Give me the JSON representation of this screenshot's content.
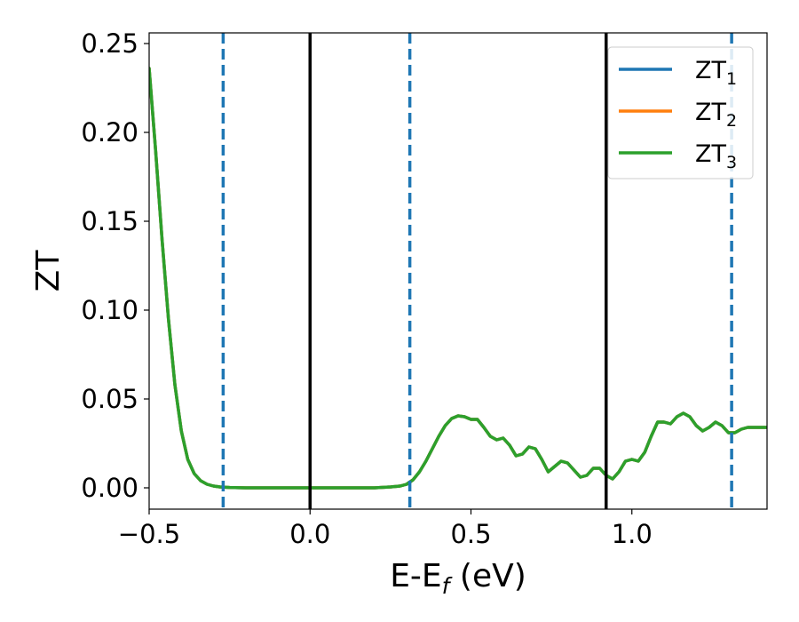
{
  "chart_data": {
    "type": "line",
    "xlabel": "E-E",
    "xlabel_sub": "f",
    "xlabel_unit": " (eV)",
    "ylabel": "ZT",
    "xlim": [
      -0.5,
      1.42
    ],
    "ylim": [
      -0.012,
      0.256
    ],
    "xticks": [
      -0.5,
      0.0,
      0.5,
      1.0
    ],
    "xtick_labels": [
      "−0.5",
      "0.0",
      "0.5",
      "1.0"
    ],
    "yticks": [
      0.0,
      0.05,
      0.1,
      0.15,
      0.2,
      0.25
    ],
    "ytick_labels": [
      "0.00",
      "0.05",
      "0.10",
      "0.15",
      "0.20",
      "0.25"
    ],
    "grid": false,
    "legend_position": "top-right",
    "series": [
      {
        "name": "ZT",
        "sub": "1",
        "color": "#1f77b4"
      },
      {
        "name": "ZT",
        "sub": "2",
        "color": "#ff7f0e"
      },
      {
        "name": "ZT",
        "sub": "3",
        "color": "#2ca02c"
      }
    ],
    "x": [
      -0.5,
      -0.48,
      -0.46,
      -0.44,
      -0.42,
      -0.4,
      -0.38,
      -0.36,
      -0.34,
      -0.32,
      -0.3,
      -0.28,
      -0.25,
      -0.2,
      -0.1,
      0.0,
      0.1,
      0.2,
      0.25,
      0.28,
      0.3,
      0.32,
      0.34,
      0.36,
      0.38,
      0.4,
      0.42,
      0.44,
      0.46,
      0.48,
      0.5,
      0.52,
      0.54,
      0.56,
      0.58,
      0.6,
      0.62,
      0.64,
      0.66,
      0.68,
      0.7,
      0.72,
      0.74,
      0.76,
      0.78,
      0.8,
      0.82,
      0.84,
      0.86,
      0.88,
      0.9,
      0.92,
      0.94,
      0.96,
      0.98,
      1.0,
      1.02,
      1.04,
      1.06,
      1.08,
      1.1,
      1.12,
      1.14,
      1.16,
      1.18,
      1.2,
      1.22,
      1.24,
      1.26,
      1.28,
      1.3,
      1.32,
      1.34,
      1.36,
      1.38,
      1.4,
      1.42
    ],
    "values": [
      0.236,
      0.19,
      0.14,
      0.095,
      0.058,
      0.032,
      0.016,
      0.008,
      0.004,
      0.002,
      0.001,
      0.0005,
      0.0002,
      0.0,
      0.0,
      0.0,
      0.0,
      0.0,
      0.0005,
      0.001,
      0.002,
      0.0045,
      0.009,
      0.015,
      0.022,
      0.029,
      0.035,
      0.039,
      0.0405,
      0.04,
      0.0385,
      0.0385,
      0.034,
      0.029,
      0.027,
      0.028,
      0.024,
      0.018,
      0.019,
      0.023,
      0.022,
      0.016,
      0.009,
      0.012,
      0.015,
      0.014,
      0.01,
      0.006,
      0.007,
      0.011,
      0.011,
      0.007,
      0.005,
      0.009,
      0.015,
      0.016,
      0.015,
      0.02,
      0.029,
      0.037,
      0.037,
      0.036,
      0.04,
      0.042,
      0.04,
      0.035,
      0.032,
      0.034,
      0.037,
      0.035,
      0.031,
      0.031,
      0.033,
      0.034,
      0.034,
      0.034,
      0.034
    ],
    "solid_vlines": [
      0.0,
      0.92
    ],
    "dashed_vlines": [
      -0.27,
      0.31,
      1.31
    ],
    "solid_vline_color": "#000000",
    "dashed_vline_color": "#1f77b4"
  }
}
